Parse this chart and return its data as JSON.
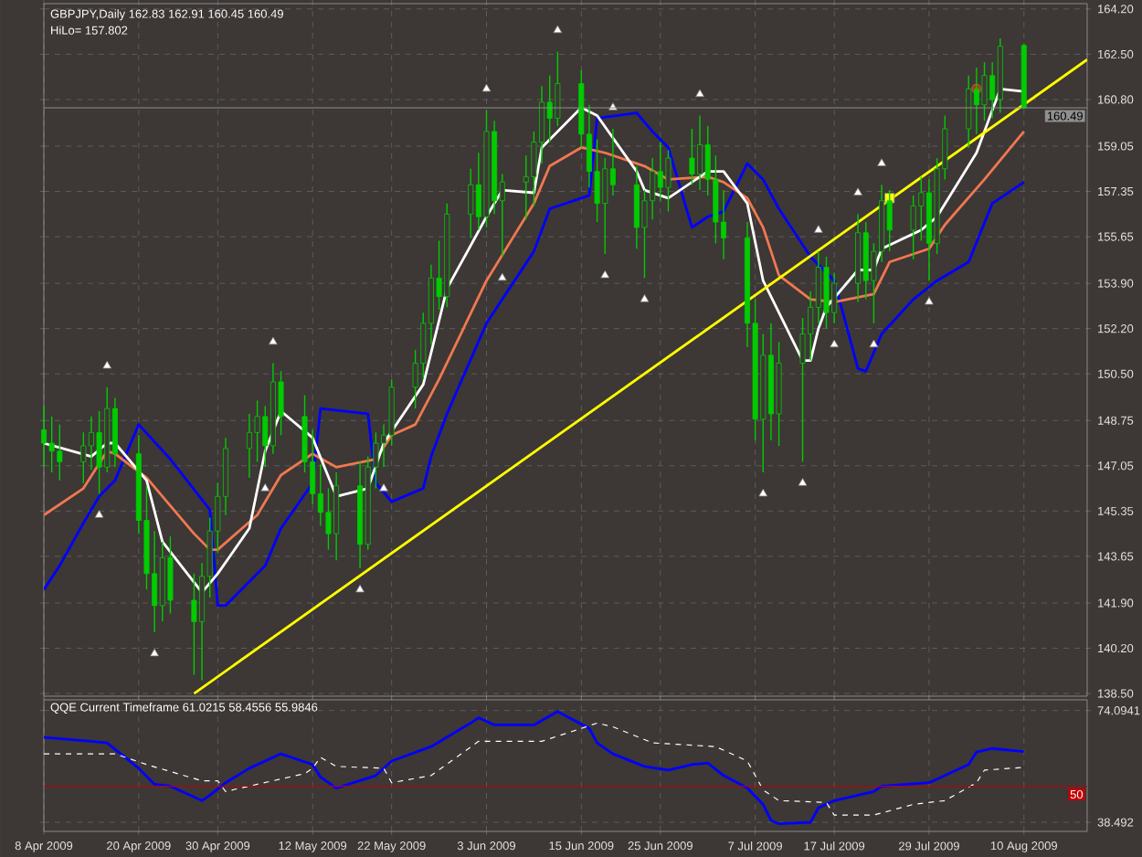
{
  "chart_data": [
    {
      "type": "candlestick",
      "title": "GBPJPY,Daily  162.83 162.91 160.45 160.49",
      "subtitle": "HiLo= 157.802",
      "color": "#00cc00",
      "x": [
        "2009-04-08",
        "2009-04-09",
        "2009-04-10",
        "2009-04-13",
        "2009-04-14",
        "2009-04-15",
        "2009-04-16",
        "2009-04-17",
        "2009-04-20",
        "2009-04-21",
        "2009-04-22",
        "2009-04-23",
        "2009-04-24",
        "2009-04-27",
        "2009-04-28",
        "2009-04-29",
        "2009-04-30",
        "2009-05-01",
        "2009-05-04",
        "2009-05-05",
        "2009-05-06",
        "2009-05-07",
        "2009-05-08",
        "2009-05-11",
        "2009-05-12",
        "2009-05-13",
        "2009-05-14",
        "2009-05-15",
        "2009-05-18",
        "2009-05-19",
        "2009-05-20",
        "2009-05-21",
        "2009-05-22",
        "2009-05-25",
        "2009-05-26",
        "2009-05-27",
        "2009-05-28",
        "2009-05-29",
        "2009-06-01",
        "2009-06-02",
        "2009-06-03",
        "2009-06-04",
        "2009-06-05",
        "2009-06-08",
        "2009-06-09",
        "2009-06-10",
        "2009-06-11",
        "2009-06-12",
        "2009-06-15",
        "2009-06-16",
        "2009-06-17",
        "2009-06-18",
        "2009-06-19",
        "2009-06-22",
        "2009-06-23",
        "2009-06-24",
        "2009-06-25",
        "2009-06-26",
        "2009-06-29",
        "2009-06-30",
        "2009-07-01",
        "2009-07-02",
        "2009-07-03",
        "2009-07-06",
        "2009-07-07",
        "2009-07-08",
        "2009-07-09",
        "2009-07-10",
        "2009-07-13",
        "2009-07-14",
        "2009-07-15",
        "2009-07-16",
        "2009-07-17",
        "2009-07-20",
        "2009-07-21",
        "2009-07-22",
        "2009-07-23",
        "2009-07-24",
        "2009-07-27",
        "2009-07-28",
        "2009-07-29",
        "2009-07-30",
        "2009-07-31",
        "2009-08-03",
        "2009-08-04",
        "2009-08-05",
        "2009-08-06",
        "2009-08-07",
        "2009-08-10"
      ],
      "ohlc": [
        [
          148.4,
          149.3,
          147.0,
          147.9
        ],
        [
          147.9,
          148.9,
          146.8,
          147.6
        ],
        [
          147.6,
          148.6,
          146.5,
          147.2
        ],
        [
          147.2,
          148.3,
          146.4,
          147.8
        ],
        [
          147.8,
          148.9,
          146.9,
          148.3
        ],
        [
          148.3,
          149.1,
          146.0,
          147.0
        ],
        [
          147.0,
          150.0,
          146.8,
          149.2
        ],
        [
          149.2,
          149.6,
          147.0,
          147.5
        ],
        [
          147.5,
          148.2,
          144.5,
          145.0
        ],
        [
          145.0,
          146.3,
          142.4,
          143.0
        ],
        [
          143.0,
          144.6,
          140.8,
          141.8
        ],
        [
          141.8,
          144.2,
          141.2,
          143.6
        ],
        [
          143.6,
          144.4,
          141.5,
          142.0
        ],
        [
          142.0,
          143.0,
          139.2,
          141.2
        ],
        [
          141.2,
          143.4,
          139.0,
          142.9
        ],
        [
          142.9,
          145.1,
          142.1,
          144.6
        ],
        [
          144.6,
          146.4,
          143.8,
          145.9
        ],
        [
          145.9,
          148.1,
          145.2,
          147.7
        ],
        [
          147.7,
          149.0,
          146.6,
          148.3
        ],
        [
          148.3,
          149.5,
          147.2,
          148.9
        ],
        [
          148.9,
          149.3,
          147.0,
          147.8
        ],
        [
          147.8,
          150.9,
          147.5,
          150.2
        ],
        [
          150.2,
          150.6,
          148.2,
          148.9
        ],
        [
          148.9,
          149.7,
          146.8,
          147.2
        ],
        [
          147.2,
          148.4,
          145.6,
          146.0
        ],
        [
          146.0,
          147.1,
          144.8,
          145.3
        ],
        [
          145.3,
          146.2,
          143.9,
          144.5
        ],
        [
          144.5,
          146.8,
          143.5,
          146.3
        ],
        [
          146.3,
          147.2,
          143.2,
          144.1
        ],
        [
          144.1,
          147.4,
          143.9,
          147.0
        ],
        [
          147.0,
          148.3,
          146.2,
          147.9
        ],
        [
          147.9,
          148.6,
          147.0,
          148.2
        ],
        [
          148.2,
          150.3,
          147.8,
          150.0
        ],
        [
          150.0,
          151.4,
          149.2,
          150.9
        ],
        [
          150.9,
          152.8,
          150.3,
          152.4
        ],
        [
          152.4,
          154.6,
          151.6,
          154.1
        ],
        [
          154.1,
          155.5,
          152.9,
          153.4
        ],
        [
          153.4,
          156.9,
          153.0,
          156.5
        ],
        [
          156.5,
          158.2,
          155.6,
          157.6
        ],
        [
          157.6,
          158.8,
          155.9,
          156.4
        ],
        [
          156.4,
          160.4,
          156.0,
          159.6
        ],
        [
          159.6,
          160.0,
          156.5,
          157.0
        ],
        [
          157.0,
          158.0,
          154.9,
          157.7
        ],
        [
          157.7,
          158.7,
          156.3,
          157.9
        ],
        [
          157.9,
          159.6,
          156.8,
          159.2
        ],
        [
          159.2,
          161.3,
          158.4,
          160.7
        ],
        [
          160.7,
          161.7,
          159.2,
          160.1
        ],
        [
          160.1,
          162.6,
          159.8,
          161.4
        ],
        [
          161.4,
          161.9,
          159.0,
          159.5
        ],
        [
          159.5,
          160.6,
          157.5,
          158.1
        ],
        [
          158.1,
          159.3,
          156.2,
          156.9
        ],
        [
          156.9,
          158.6,
          155.0,
          158.2
        ],
        [
          158.2,
          159.7,
          157.2,
          157.6
        ],
        [
          157.6,
          158.3,
          155.2,
          156.0
        ],
        [
          156.0,
          157.4,
          154.1,
          157.0
        ],
        [
          157.0,
          158.6,
          156.3,
          158.1
        ],
        [
          158.1,
          159.2,
          157.0,
          157.5
        ],
        [
          157.5,
          158.9,
          156.6,
          158.6
        ],
        [
          158.6,
          159.7,
          157.6,
          158.0
        ],
        [
          158.0,
          160.2,
          157.4,
          159.1
        ],
        [
          159.1,
          159.8,
          157.2,
          157.8
        ],
        [
          157.8,
          158.7,
          155.4,
          156.2
        ],
        [
          156.2,
          157.4,
          154.8,
          155.6
        ],
        [
          155.6,
          156.2,
          151.5,
          152.4
        ],
        [
          152.4,
          153.3,
          148.0,
          148.8
        ],
        [
          148.8,
          152.0,
          146.8,
          151.2
        ],
        [
          151.2,
          152.4,
          148.0,
          149.0
        ],
        [
          149.0,
          151.7,
          147.8,
          150.9
        ],
        [
          150.9,
          152.6,
          147.2,
          152.0
        ],
        [
          152.0,
          153.6,
          151.0,
          153.0
        ],
        [
          153.0,
          155.1,
          152.4,
          154.5
        ],
        [
          154.5,
          154.9,
          152.2,
          152.8
        ],
        [
          152.8,
          154.3,
          152.4,
          153.9
        ],
        [
          153.9,
          156.5,
          153.2,
          155.8
        ],
        [
          155.8,
          156.2,
          153.3,
          154.0
        ],
        [
          154.0,
          155.4,
          152.4,
          155.1
        ],
        [
          155.1,
          157.6,
          154.7,
          157.0
        ],
        [
          157.0,
          157.4,
          155.1,
          155.9
        ],
        [
          155.9,
          157.2,
          154.8,
          156.8
        ],
        [
          156.8,
          157.9,
          155.5,
          157.3
        ],
        [
          157.3,
          157.8,
          154.0,
          155.4
        ],
        [
          155.4,
          158.6,
          155.0,
          158.2
        ],
        [
          158.2,
          160.2,
          157.8,
          159.7
        ],
        [
          159.7,
          161.7,
          159.0,
          161.2
        ],
        [
          161.2,
          162.0,
          159.5,
          160.6
        ],
        [
          160.6,
          162.2,
          160.0,
          161.7
        ],
        [
          161.7,
          162.2,
          160.1,
          160.8
        ],
        [
          160.8,
          163.1,
          160.3,
          162.8
        ],
        [
          162.83,
          162.91,
          160.45,
          160.49
        ]
      ],
      "series": [
        {
          "type": "line",
          "color": "#0000ff",
          "x": [
            "2009-04-08",
            "2009-04-10",
            "2009-04-13",
            "2009-04-15",
            "2009-04-17",
            "2009-04-20",
            "2009-04-24",
            "2009-04-29",
            "2009-04-30",
            "2009-05-01",
            "2009-05-06",
            "2009-05-08",
            "2009-05-12",
            "2009-05-13",
            "2009-05-19",
            "2009-05-20",
            "2009-05-22",
            "2009-05-26",
            "2009-05-27",
            "2009-05-29",
            "2009-06-03",
            "2009-06-09",
            "2009-06-11",
            "2009-06-16",
            "2009-06-17",
            "2009-06-22",
            "2009-06-24",
            "2009-06-26",
            "2009-06-29",
            "2009-07-01",
            "2009-07-03",
            "2009-07-06",
            "2009-07-08",
            "2009-07-10",
            "2009-07-14",
            "2009-07-17",
            "2009-07-20",
            "2009-07-21",
            "2009-07-23",
            "2009-07-27",
            "2009-07-30",
            "2009-08-03",
            "2009-08-06",
            "2009-08-10"
          ],
          "values": [
            142.4,
            143.3,
            144.9,
            145.9,
            146.5,
            148.6,
            147.3,
            145.4,
            141.8,
            141.8,
            143.3,
            144.7,
            146.4,
            149.2,
            149.0,
            146.4,
            145.7,
            146.2,
            147.4,
            149.0,
            152.4,
            155.1,
            156.7,
            157.2,
            160.1,
            160.3,
            159.6,
            159.0,
            156.0,
            156.4,
            156.6,
            158.4,
            157.8,
            156.7,
            154.9,
            154.0,
            150.7,
            150.6,
            152.0,
            153.3,
            154.0,
            154.7,
            156.9,
            157.7
          ]
        },
        {
          "type": "line",
          "color": "#f07850",
          "x": [
            "2009-04-08",
            "2009-04-13",
            "2009-04-16",
            "2009-04-17",
            "2009-04-21",
            "2009-04-27",
            "2009-04-29",
            "2009-04-30",
            "2009-05-05",
            "2009-05-08",
            "2009-05-12",
            "2009-05-15",
            "2009-05-20",
            "2009-05-22",
            "2009-05-25",
            "2009-05-28",
            "2009-06-03",
            "2009-06-09",
            "2009-06-11",
            "2009-06-15",
            "2009-06-18",
            "2009-06-23",
            "2009-06-26",
            "2009-07-01",
            "2009-07-03",
            "2009-07-06",
            "2009-07-08",
            "2009-07-10",
            "2009-07-14",
            "2009-07-17",
            "2009-07-22",
            "2009-07-24",
            "2009-07-29",
            "2009-07-31",
            "2009-08-05",
            "2009-08-10"
          ],
          "values": [
            145.2,
            146.2,
            147.6,
            147.5,
            146.6,
            144.5,
            143.9,
            143.9,
            145.2,
            146.7,
            147.5,
            147.0,
            147.3,
            148.2,
            148.6,
            150.3,
            154.0,
            156.9,
            158.3,
            159.0,
            158.8,
            158.3,
            157.8,
            157.9,
            157.7,
            157.1,
            156.0,
            154.2,
            153.3,
            153.2,
            153.5,
            154.7,
            155.2,
            156.1,
            157.8,
            159.6
          ]
        },
        {
          "type": "line",
          "color": "#ffffff",
          "x": [
            "2009-04-08",
            "2009-04-14",
            "2009-04-16",
            "2009-04-17",
            "2009-04-21",
            "2009-04-23",
            "2009-04-28",
            "2009-04-30",
            "2009-05-04",
            "2009-05-06",
            "2009-05-08",
            "2009-05-12",
            "2009-05-15",
            "2009-05-19",
            "2009-05-21",
            "2009-05-26",
            "2009-05-29",
            "2009-06-03",
            "2009-06-05",
            "2009-06-09",
            "2009-06-10",
            "2009-06-15",
            "2009-06-17",
            "2009-06-22",
            "2009-06-23",
            "2009-06-26",
            "2009-07-01",
            "2009-07-03",
            "2009-07-06",
            "2009-07-08",
            "2009-07-13",
            "2009-07-14",
            "2009-07-15",
            "2009-07-16",
            "2009-07-20",
            "2009-07-22",
            "2009-07-23",
            "2009-07-28",
            "2009-07-30",
            "2009-08-04",
            "2009-08-07",
            "2009-08-10"
          ],
          "values": [
            147.9,
            147.4,
            147.9,
            147.9,
            146.5,
            144.2,
            142.3,
            143.0,
            144.7,
            147.6,
            149.1,
            148.1,
            145.9,
            146.2,
            147.9,
            150.1,
            153.7,
            156.4,
            157.4,
            157.3,
            159.0,
            160.5,
            160.2,
            158.1,
            157.4,
            157.1,
            158.1,
            158.1,
            156.9,
            154.0,
            151.0,
            151.0,
            152.2,
            153.0,
            154.4,
            154.4,
            155.2,
            155.9,
            156.4,
            158.8,
            161.2,
            161.1
          ]
        },
        {
          "type": "line",
          "color": "#ffff00",
          "x": [
            "2009-04-27",
            "2009-08-18"
          ],
          "values": [
            138.5,
            162.3
          ]
        },
        {
          "type": "scatter",
          "marker": "triangle",
          "color": "#ffffff",
          "x": [
            "2009-04-16",
            "2009-05-07",
            "2009-06-03",
            "2009-06-12",
            "2009-06-19",
            "2009-06-30",
            "2009-07-15",
            "2009-07-20",
            "2009-07-23"
          ],
          "values": [
            150.8,
            151.7,
            161.2,
            163.4,
            160.5,
            161.0,
            155.9,
            157.3,
            158.4
          ]
        },
        {
          "type": "scatter",
          "marker": "triangle",
          "color": "#ffffff",
          "x": [
            "2009-04-15",
            "2009-04-22",
            "2009-05-06",
            "2009-05-18",
            "2009-05-21",
            "2009-06-05",
            "2009-06-18",
            "2009-06-23",
            "2009-07-08",
            "2009-07-13",
            "2009-07-17",
            "2009-07-22",
            "2009-07-29"
          ],
          "values": [
            145.2,
            140.0,
            146.2,
            142.4,
            146.2,
            154.1,
            154.2,
            153.3,
            146.0,
            146.4,
            151.6,
            151.6,
            153.2
          ]
        },
        {
          "type": "scatter",
          "marker": "square",
          "color": "#ffff00",
          "x": [
            "2009-07-24"
          ],
          "values": [
            157.1
          ]
        },
        {
          "type": "scatter",
          "marker": "circle",
          "color": "#c03010",
          "x": [
            "2009-08-04"
          ],
          "values": [
            161.2
          ]
        }
      ],
      "xlim": [
        "2009-04-08",
        "2009-08-18"
      ],
      "ylim": [
        138.4,
        164.4
      ],
      "xticks": [
        {
          "value": "2009-04-08",
          "label": null
        },
        {
          "value": "2009-04-20",
          "label": null
        },
        {
          "value": "2009-04-30",
          "label": null
        },
        {
          "value": "2009-05-12",
          "label": null
        },
        {
          "value": "2009-05-22",
          "label": null
        },
        {
          "value": "2009-06-03",
          "label": null
        },
        {
          "value": "2009-06-15",
          "label": null
        },
        {
          "value": "2009-06-25",
          "label": null
        },
        {
          "value": "2009-07-07",
          "label": null
        },
        {
          "value": "2009-07-17",
          "label": null
        },
        {
          "value": "2009-07-29",
          "label": null
        },
        {
          "value": "2009-08-10",
          "label": null
        }
      ],
      "yticks": [
        {
          "value": 164.2,
          "label": "164.20"
        },
        {
          "value": 162.5,
          "label": "162.50"
        },
        {
          "value": 160.8,
          "label": "160.80"
        },
        {
          "value": 159.05,
          "label": "159.05"
        },
        {
          "value": 157.35,
          "label": "157.35"
        },
        {
          "value": 155.65,
          "label": "155.65"
        },
        {
          "value": 153.9,
          "label": "153.90"
        },
        {
          "value": 152.2,
          "label": "152.20"
        },
        {
          "value": 150.5,
          "label": "150.50"
        },
        {
          "value": 148.75,
          "label": "148.75"
        },
        {
          "value": 147.05,
          "label": "147.05"
        },
        {
          "value": 145.35,
          "label": "145.35"
        },
        {
          "value": 143.65,
          "label": "143.65"
        },
        {
          "value": 141.9,
          "label": "141.90"
        },
        {
          "value": 140.2,
          "label": "140.20"
        },
        {
          "value": 138.5,
          "label": "138.50"
        }
      ],
      "grid": true,
      "tick_labels": "y",
      "ref_lines": [
        {
          "axis": "y",
          "value": 160.49,
          "label": "160.49",
          "color": "#909090"
        }
      ]
    },
    {
      "type": "line",
      "title": "QQE Current Timeframe 61.0215 58.4556 55.9846",
      "series": [
        {
          "color": "#0000ff",
          "x": [
            "2009-04-08",
            "2009-04-14",
            "2009-04-16",
            "2009-04-20",
            "2009-04-22",
            "2009-04-24",
            "2009-04-28",
            "2009-04-29",
            "2009-05-01",
            "2009-05-04",
            "2009-05-08",
            "2009-05-12",
            "2009-05-13",
            "2009-05-15",
            "2009-05-20",
            "2009-05-22",
            "2009-05-27",
            "2009-06-01",
            "2009-06-02",
            "2009-06-04",
            "2009-06-09",
            "2009-06-12",
            "2009-06-16",
            "2009-06-17",
            "2009-06-19",
            "2009-06-23",
            "2009-06-26",
            "2009-06-29",
            "2009-07-01",
            "2009-07-03",
            "2009-07-06",
            "2009-07-08",
            "2009-07-09",
            "2009-07-10",
            "2009-07-14",
            "2009-07-15",
            "2009-07-17",
            "2009-07-22",
            "2009-07-23",
            "2009-07-29",
            "2009-08-03",
            "2009-08-04",
            "2009-08-06",
            "2009-08-10"
          ],
          "values": [
            65.5,
            64.3,
            63.8,
            55.7,
            50.6,
            50.0,
            45.4,
            47.1,
            51.1,
            55.7,
            60.3,
            56.9,
            52.9,
            49.4,
            53.4,
            58.0,
            62.6,
            70.1,
            71.8,
            69.5,
            69.5,
            73.8,
            68.4,
            63.8,
            60.3,
            56.3,
            55.1,
            56.9,
            57.4,
            53.4,
            49.4,
            44.2,
            39.1,
            38.0,
            38.5,
            43.1,
            45.4,
            48.3,
            50.0,
            51.1,
            56.9,
            60.9,
            62.0,
            61.0
          ]
        },
        {
          "color": "#ffffff",
          "line_style": "dashed",
          "x": [
            "2009-04-08",
            "2009-04-17",
            "2009-04-21",
            "2009-04-28",
            "2009-04-30",
            "2009-05-01",
            "2009-05-05",
            "2009-05-11",
            "2009-05-12",
            "2009-05-13",
            "2009-05-15",
            "2009-05-21",
            "2009-05-22",
            "2009-05-27",
            "2009-06-02",
            "2009-06-10",
            "2009-06-15",
            "2009-06-17",
            "2009-06-19",
            "2009-06-24",
            "2009-07-02",
            "2009-07-06",
            "2009-07-08",
            "2009-07-10",
            "2009-07-16",
            "2009-07-17",
            "2009-07-22",
            "2009-07-27",
            "2009-07-31",
            "2009-08-04",
            "2009-08-05",
            "2009-08-10"
          ],
          "values": [
            60.3,
            60.3,
            56.9,
            51.7,
            51.7,
            48.3,
            50.6,
            54.0,
            55.7,
            59.2,
            56.3,
            55.7,
            51.1,
            53.4,
            64.3,
            64.3,
            68.4,
            70.1,
            68.9,
            63.8,
            62.6,
            58.0,
            48.8,
            45.4,
            44.8,
            40.8,
            40.8,
            44.2,
            45.4,
            51.1,
            55.1,
            56.0
          ]
        }
      ],
      "xlim": [
        "2009-04-08",
        "2009-08-18"
      ],
      "ylim": [
        35.6,
        77.5
      ],
      "xticks": [
        {
          "value": "2009-04-08",
          "label": "8 Apr 2009"
        },
        {
          "value": "2009-04-20",
          "label": "20 Apr 2009"
        },
        {
          "value": "2009-04-30",
          "label": "30 Apr 2009"
        },
        {
          "value": "2009-05-12",
          "label": "12 May 2009"
        },
        {
          "value": "2009-05-22",
          "label": "22 May 2009"
        },
        {
          "value": "2009-06-03",
          "label": "3 Jun 2009"
        },
        {
          "value": "2009-06-15",
          "label": "15 Jun 2009"
        },
        {
          "value": "2009-06-25",
          "label": "25 Jun 2009"
        },
        {
          "value": "2009-07-07",
          "label": "7 Jul 2009"
        },
        {
          "value": "2009-07-17",
          "label": "17 Jul 2009"
        },
        {
          "value": "2009-07-29",
          "label": "29 Jul 2009"
        },
        {
          "value": "2009-08-10",
          "label": "10 Aug 2009"
        }
      ],
      "yticks": [
        74.0941,
        38.492
      ],
      "grid": true,
      "ref_lines": [
        {
          "axis": "y",
          "value": 50,
          "label": "50",
          "color": "#c00000"
        }
      ]
    }
  ]
}
